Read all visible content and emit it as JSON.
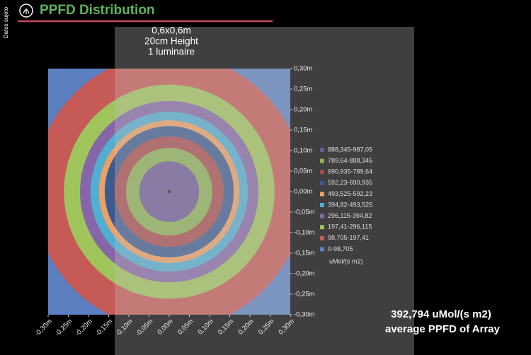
{
  "chart_data": {
    "type": "contour",
    "title": "PPFD Distribution",
    "side_note": "Datos sujeto",
    "subtitle_lines": [
      "0,6x0,6m",
      "20cm Height",
      "1 luminaire"
    ],
    "legend_title": "uMol/(s m2)",
    "average": {
      "value": 392.794,
      "label": "392,794 uMol/(s m2)",
      "caption": "average PPFD of Array"
    },
    "xlim": [
      -0.3,
      0.3
    ],
    "ylim": [
      -0.3,
      0.3
    ],
    "xticks": [
      {
        "value": -0.3,
        "label": "-0,30m"
      },
      {
        "value": -0.25,
        "label": "-0,25m"
      },
      {
        "value": -0.2,
        "label": "-0,20m"
      },
      {
        "value": -0.15,
        "label": "-0,15m"
      },
      {
        "value": -0.1,
        "label": "-0,10m"
      },
      {
        "value": -0.05,
        "label": "-0,05m"
      },
      {
        "value": 0,
        "label": "0,00m"
      },
      {
        "value": 0.05,
        "label": "0,05m"
      },
      {
        "value": 0.1,
        "label": "0,10m"
      },
      {
        "value": 0.15,
        "label": "0,15m"
      },
      {
        "value": 0.2,
        "label": "0,20m"
      },
      {
        "value": 0.25,
        "label": "0,25m"
      },
      {
        "value": 0.3,
        "label": "0,30m"
      }
    ],
    "yticks": [
      {
        "value": 0.3,
        "label": "0,30m"
      },
      {
        "value": 0.25,
        "label": "0,25m"
      },
      {
        "value": 0.2,
        "label": "0,20m"
      },
      {
        "value": 0.15,
        "label": "0,15m"
      },
      {
        "value": 0.1,
        "label": "0,10m"
      },
      {
        "value": 0.05,
        "label": "0,05m"
      },
      {
        "value": 0,
        "label": "0,00m"
      },
      {
        "value": -0.05,
        "label": "-0,05m"
      },
      {
        "value": -0.1,
        "label": "-0,10m"
      },
      {
        "value": -0.15,
        "label": "-0,15m"
      },
      {
        "value": -0.2,
        "label": "-0,20m"
      },
      {
        "value": -0.25,
        "label": "-0,25m"
      },
      {
        "value": -0.3,
        "label": "-0,30m"
      }
    ],
    "series": [
      {
        "name": "888,345-987,05",
        "color": "#6f5a96",
        "radius": 0.074
      },
      {
        "name": "789,64-888,345",
        "color": "#8db053",
        "radius": 0.107
      },
      {
        "name": "690,935-789,64",
        "color": "#a94b4c",
        "radius": 0.135
      },
      {
        "name": "592,23-690,935",
        "color": "#3c5a8e",
        "radius": 0.16
      },
      {
        "name": "493,525-592,23",
        "color": "#eea064",
        "radius": 0.174
      },
      {
        "name": "394,82-493,525",
        "color": "#52aed0",
        "radius": 0.195
      },
      {
        "name": "296,115-394,82",
        "color": "#8666a8",
        "radius": 0.221
      },
      {
        "name": "197,41-296,115",
        "color": "#a0c45c",
        "radius": 0.261
      },
      {
        "name": "98,705-197,41",
        "color": "#c65a56",
        "radius": 0.335
      },
      {
        "name": "0-98,705",
        "color": "#5b7fc0",
        "radius": 0.43
      }
    ]
  }
}
